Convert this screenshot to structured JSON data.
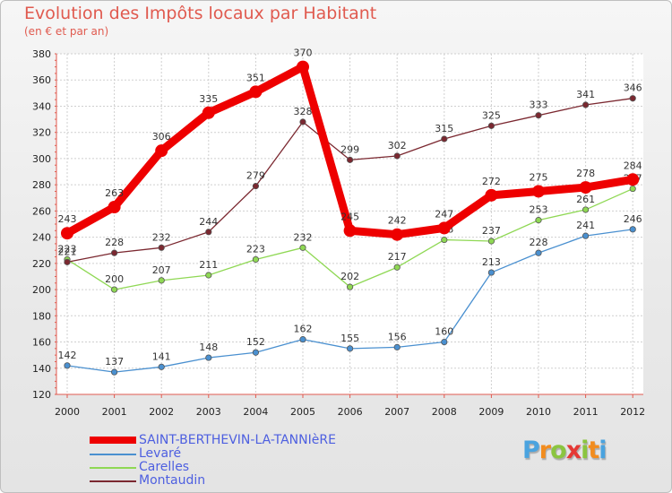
{
  "chart_data": {
    "type": "line",
    "title": "Evolution des Impôts locaux par Habitant",
    "subtitle": "(en € et par an)",
    "xlabel": "",
    "ylabel": "",
    "ylim": [
      120,
      380
    ],
    "yticks": [
      120,
      140,
      160,
      180,
      200,
      220,
      240,
      260,
      280,
      300,
      320,
      340,
      360,
      380
    ],
    "grid": true,
    "categories": [
      "2000",
      "2001",
      "2002",
      "2003",
      "2004",
      "2005",
      "2006",
      "2007",
      "2008",
      "2009",
      "2010",
      "2011",
      "2012"
    ],
    "series": [
      {
        "name": "SAINT-BERTHEVIN-LA-TANNIèRE",
        "color": "#ee0000",
        "values": [
          243,
          263,
          306,
          335,
          351,
          370,
          245,
          242,
          247,
          272,
          275,
          278,
          284
        ]
      },
      {
        "name": "Levaré",
        "color": "#4a90d0",
        "values": [
          142,
          137,
          141,
          148,
          152,
          162,
          155,
          156,
          160,
          213,
          228,
          241,
          246
        ]
      },
      {
        "name": "Carelles",
        "color": "#8fd854",
        "values": [
          223,
          200,
          207,
          211,
          223,
          232,
          202,
          217,
          238,
          237,
          253,
          261,
          277
        ]
      },
      {
        "name": "Montaudin",
        "color": "#7b2830",
        "values": [
          221,
          228,
          232,
          244,
          279,
          328,
          299,
          302,
          315,
          325,
          333,
          341,
          346
        ]
      }
    ],
    "legend_position": "bottom-left"
  },
  "logo": {
    "letters": [
      "P",
      "r",
      "o",
      "x",
      "i",
      "t",
      "i"
    ],
    "colors": [
      "#4aa3df",
      "#f28c1e",
      "#8bc53f",
      "#e53935",
      "#8bc53f",
      "#f28c1e",
      "#4aa3df"
    ]
  }
}
